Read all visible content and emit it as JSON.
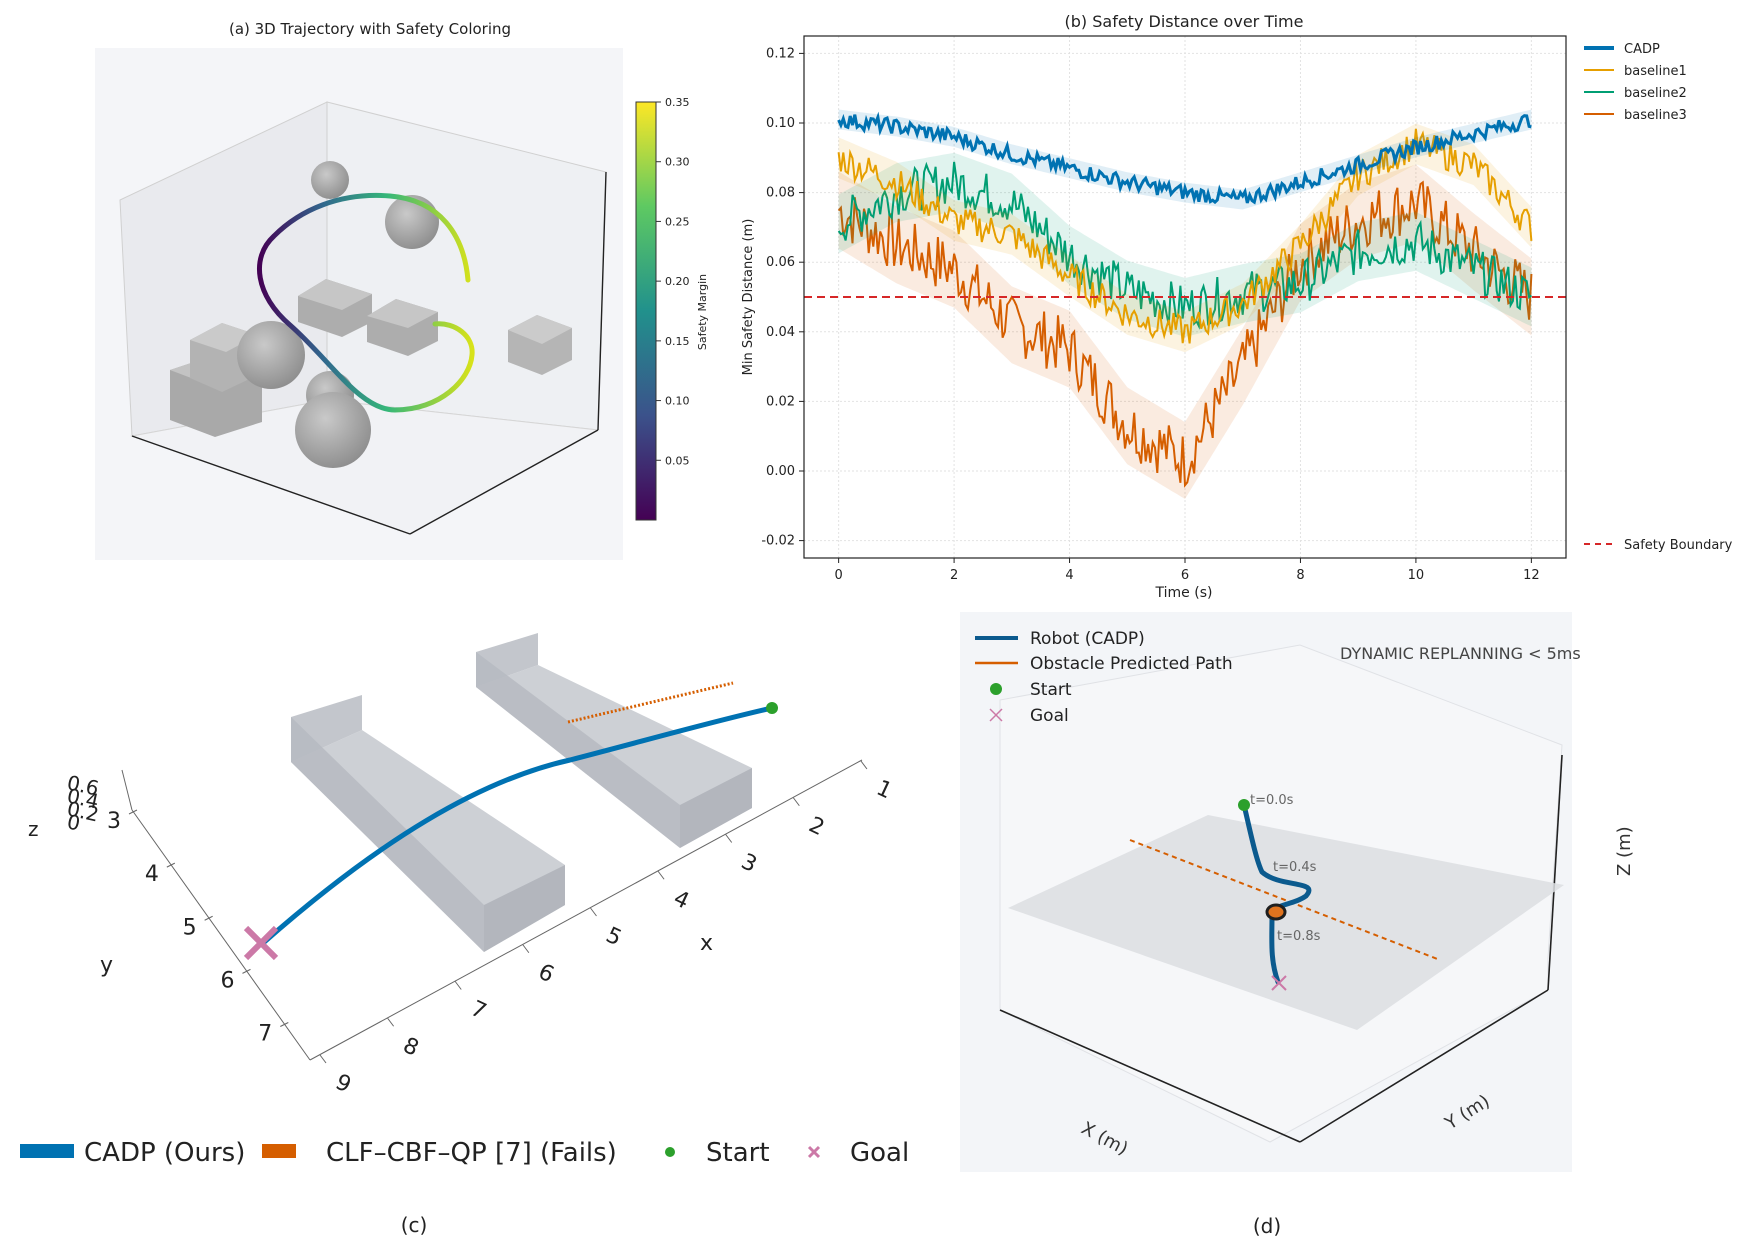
{
  "panel_a": {
    "title": "(a) 3D Trajectory with Safety Coloring",
    "colorbar_label": "Safety Margin",
    "colorbar_ticks": [
      "0.35",
      "0.30",
      "0.25",
      "0.20",
      "0.15",
      "0.10",
      "0.05"
    ]
  },
  "panel_b": {
    "chart_data": {
      "type": "line",
      "title": "(b) Safety Distance over Time",
      "xlabel": "Time (s)",
      "ylabel": "Min Safety Distance (m)",
      "xlim": [
        -0.6,
        12.6
      ],
      "ylim": [
        -0.025,
        0.125
      ],
      "x_ticks": [
        0,
        2,
        4,
        6,
        8,
        10,
        12
      ],
      "y_ticks": [
        -0.02,
        0.0,
        0.02,
        0.04,
        0.06,
        0.08,
        0.1,
        0.12
      ],
      "grid": true,
      "legend_position": "right",
      "x": [
        0,
        1,
        2,
        3,
        4,
        5,
        6,
        7,
        8,
        9,
        10,
        11,
        12
      ],
      "series": [
        {
          "name": "CADP",
          "color": "#0072b2",
          "values": [
            0.101,
            0.099,
            0.096,
            0.091,
            0.087,
            0.083,
            0.08,
            0.078,
            0.083,
            0.088,
            0.093,
            0.097,
            0.101
          ]
        },
        {
          "name": "baseline1",
          "color": "#e69f00",
          "values": [
            0.09,
            0.083,
            0.072,
            0.068,
            0.056,
            0.045,
            0.04,
            0.048,
            0.065,
            0.085,
            0.094,
            0.088,
            0.07
          ]
        },
        {
          "name": "baseline2",
          "color": "#009e73",
          "values": [
            0.071,
            0.08,
            0.083,
            0.077,
            0.062,
            0.052,
            0.047,
            0.051,
            0.054,
            0.063,
            0.066,
            0.058,
            0.05
          ]
        },
        {
          "name": "baseline3",
          "color": "#d55e00",
          "values": [
            0.075,
            0.065,
            0.058,
            0.042,
            0.035,
            0.013,
            0.003,
            0.03,
            0.06,
            0.072,
            0.077,
            0.063,
            0.05
          ]
        }
      ],
      "reference_lines": [
        {
          "name": "Safety Boundary",
          "y": 0.05,
          "color": "#d62728",
          "style": "dashed"
        }
      ]
    }
  },
  "panel_c": {
    "caption": "(c)",
    "x_axis_label": "x",
    "y_axis_label": "y",
    "z_axis_label": "z",
    "x_ticks": [
      "1",
      "2",
      "3",
      "4",
      "5",
      "6",
      "7",
      "8",
      "9"
    ],
    "y_ticks": [
      "3",
      "4",
      "5",
      "6",
      "7"
    ],
    "z_ticks": [
      "0",
      "0.2",
      "0.4",
      "0.6"
    ],
    "legend": [
      {
        "label": "CADP (Ours)",
        "color": "#0072b2"
      },
      {
        "label": "CLF–CBF–QP [7] (Fails)",
        "color": "#d55e00"
      },
      {
        "label": "Start",
        "color": "#2ca02c"
      },
      {
        "label": "Goal",
        "color": "#cc79a7"
      }
    ]
  },
  "panel_d": {
    "caption": "(d)",
    "banner": "DYNAMIC REPLANNING < 5ms",
    "x_axis_label": "X (m)",
    "y_axis_label": "Y (m)",
    "z_axis_label": "Z (m)",
    "time_labels": [
      "t=0.0s",
      "t=0.4s",
      "t=0.8s"
    ],
    "legend": [
      {
        "label": "Robot (CADP)",
        "color": "#0b5a8e"
      },
      {
        "label": "Obstacle Predicted Path",
        "color": "#d55e00"
      },
      {
        "label": "Start",
        "color": "#2ca02c"
      },
      {
        "label": "Goal",
        "color": "#cc79a7"
      }
    ]
  }
}
